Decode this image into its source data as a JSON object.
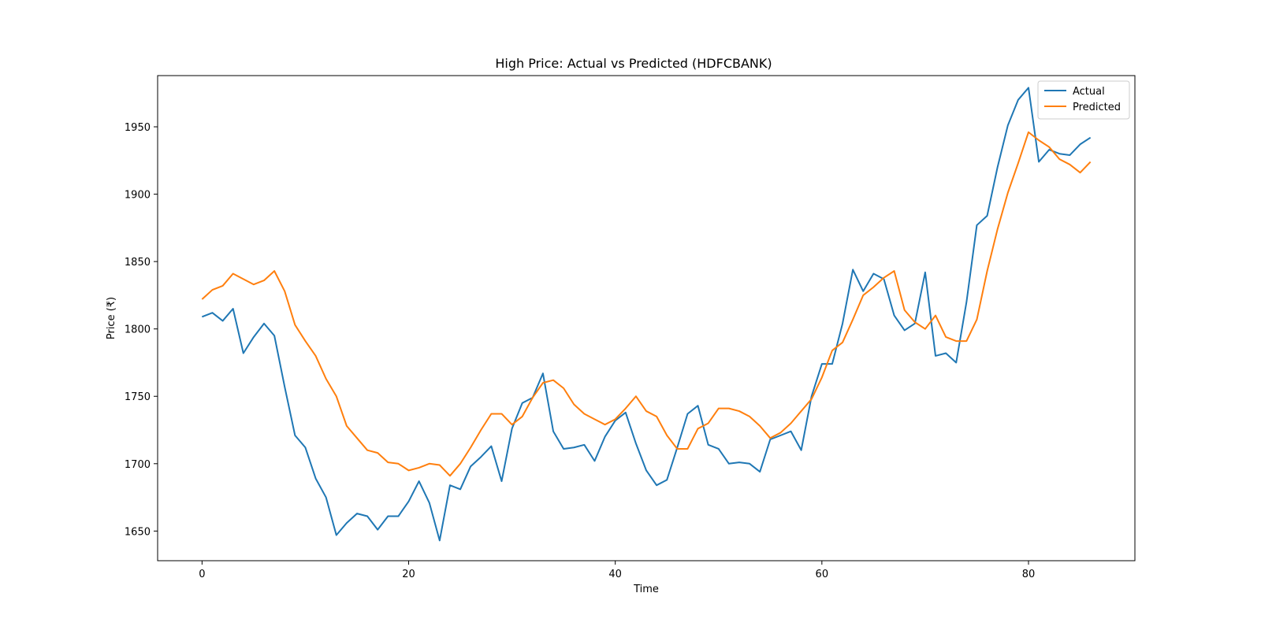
{
  "chart_data": {
    "type": "line",
    "title": "High Price: Actual vs Predicted (HDFCBANK)",
    "xlabel": "Time",
    "ylabel": "Price (₹)",
    "xlim": [
      -4.3,
      90.3
    ],
    "ylim": [
      1628,
      1988
    ],
    "x_ticks": [
      0,
      20,
      40,
      60,
      80
    ],
    "y_ticks": [
      1650,
      1700,
      1750,
      1800,
      1850,
      1900,
      1950
    ],
    "grid": false,
    "legend_position": "top-right",
    "series": [
      {
        "name": "Actual",
        "color": "#1f77b4",
        "values": [
          1809,
          1812,
          1806,
          1815,
          1782,
          1794,
          1804,
          1795,
          1757,
          1721,
          1712,
          1689,
          1675,
          1647,
          1656,
          1663,
          1661,
          1651,
          1661,
          1661,
          1672,
          1687,
          1671,
          1643,
          1684,
          1681,
          1698,
          1705,
          1713,
          1687,
          1726,
          1745,
          1749,
          1767,
          1724,
          1711,
          1712,
          1714,
          1702,
          1720,
          1732,
          1738,
          1715,
          1695,
          1684,
          1688,
          1712,
          1737,
          1743,
          1714,
          1711,
          1700,
          1701,
          1700,
          1694,
          1718,
          1721,
          1724,
          1710,
          1750,
          1774,
          1774,
          1804,
          1844,
          1828,
          1841,
          1837,
          1810,
          1799,
          1804,
          1842,
          1780,
          1782,
          1775,
          1820,
          1877,
          1884,
          1920,
          1951,
          1970,
          1979,
          1924,
          1933,
          1930,
          1929,
          1937,
          1942
        ]
      },
      {
        "name": "Predicted",
        "color": "#ff7f0e",
        "values": [
          1822,
          1829,
          1832,
          1841,
          1837,
          1833,
          1836,
          1843,
          1828,
          1803,
          1791,
          1780,
          1763,
          1750,
          1728,
          1719,
          1710,
          1708,
          1701,
          1700,
          1695,
          1697,
          1700,
          1699,
          1691,
          1700,
          1712,
          1725,
          1737,
          1737,
          1729,
          1735,
          1749,
          1760,
          1762,
          1756,
          1744,
          1737,
          1733,
          1729,
          1733,
          1741,
          1750,
          1739,
          1735,
          1721,
          1711,
          1711,
          1726,
          1730,
          1741,
          1741,
          1739,
          1735,
          1728,
          1719,
          1723,
          1730,
          1739,
          1748,
          1764,
          1784,
          1790,
          1807,
          1825,
          1831,
          1838,
          1843,
          1814,
          1805,
          1800,
          1810,
          1794,
          1791,
          1791,
          1807,
          1843,
          1874,
          1901,
          1923,
          1946,
          1940,
          1935,
          1926,
          1922,
          1916,
          1924
        ]
      }
    ]
  }
}
